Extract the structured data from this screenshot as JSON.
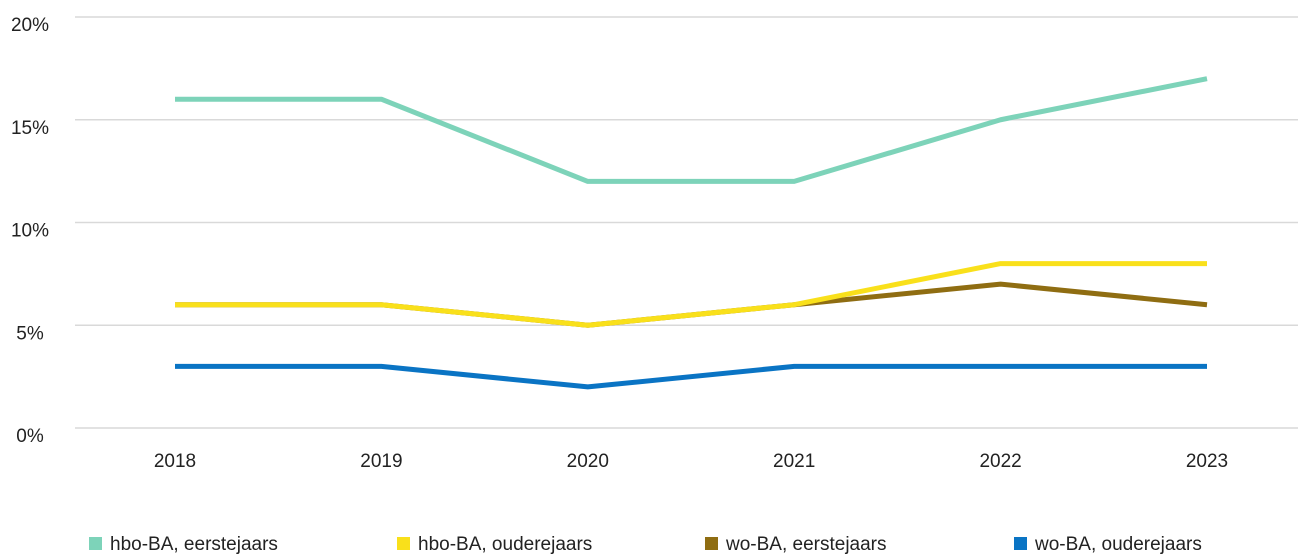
{
  "chart_data": {
    "type": "line",
    "categories": [
      "2018",
      "2019",
      "2020",
      "2021",
      "2022",
      "2023"
    ],
    "series": [
      {
        "name": "hbo-BA, eerstejaars",
        "color": "#7dd3b9",
        "values": [
          16,
          16,
          12,
          12,
          15,
          17
        ]
      },
      {
        "name": "hbo-BA, ouderejaars",
        "color": "#f9e01b",
        "values": [
          6,
          6,
          5,
          6,
          8,
          8
        ]
      },
      {
        "name": "wo-BA, eerstejaars",
        "color": "#8f6d12",
        "values": [
          6,
          6,
          5,
          6,
          7,
          6
        ]
      },
      {
        "name": "wo-BA, ouderejaars",
        "color": "#0a74c4",
        "values": [
          3,
          3,
          2,
          3,
          3,
          3
        ]
      }
    ],
    "ylim": [
      0,
      20
    ],
    "yticks": [
      {
        "value": 0,
        "label": "0%"
      },
      {
        "value": 5,
        "label": "5%"
      },
      {
        "value": 10,
        "label": "10%"
      },
      {
        "value": 15,
        "label": "15%"
      },
      {
        "value": 20,
        "label": "20%"
      }
    ],
    "grid": true,
    "legend": "bottom"
  }
}
